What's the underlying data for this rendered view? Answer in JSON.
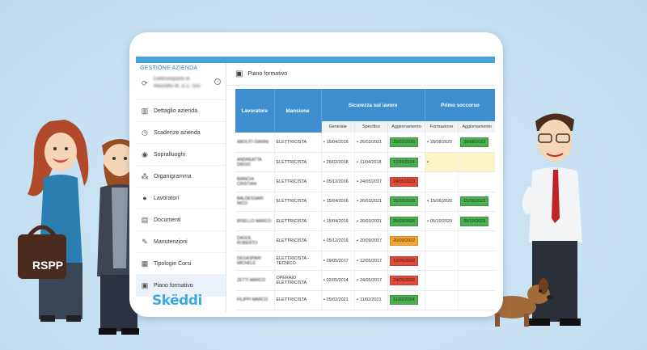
{
  "sidebar": {
    "section_title": "GESTIONE AZIENDA",
    "company_line1": "Elettroimpianti di",
    "company_line2": "Mascetto M. & C. Snc",
    "items": [
      {
        "label": "Dettaglio azienda",
        "icon": "building-icon"
      },
      {
        "label": "Scadenze azienda",
        "icon": "clock-icon"
      },
      {
        "label": "Sopralluoghi",
        "icon": "eye-icon"
      },
      {
        "label": "Organigramma",
        "icon": "org-chart-icon"
      },
      {
        "label": "Lavoratori",
        "icon": "person-icon"
      },
      {
        "label": "Documenti",
        "icon": "document-icon"
      },
      {
        "label": "Manutenzioni",
        "icon": "wrench-icon"
      },
      {
        "label": "Tipologie Corsi",
        "icon": "clipboard-icon"
      },
      {
        "label": "Piano formativo",
        "icon": "calendar-icon"
      }
    ],
    "brand": "Skëddi"
  },
  "main": {
    "title": "Piano formativo",
    "headers": {
      "lavoratore": "Lavoratore",
      "mansione": "Mansione",
      "sicurezza": "Sicurezza sul lavoro",
      "primo_soccorso": "Primo soccorso"
    },
    "subheaders": {
      "generale": "Generale",
      "specifico": "Specifico",
      "aggiornamento": "Aggiornamento",
      "formazione": "Formazione",
      "aggiornamento2": "Aggiornamento"
    },
    "rows": [
      {
        "name": "ABOLITI GIANNI",
        "role": "ELETTRICISTA",
        "generale": "15/04/2016",
        "specifico": "26/03/2021",
        "agg": "26/03/2026",
        "agg_color": "green",
        "form": "28/08/2020",
        "agg2": "28/08/2023",
        "agg2_color": "green"
      },
      {
        "name": "ANDREATTA DIEGO",
        "role": "ELETTRICISTA",
        "generale": "26/02/2018",
        "specifico": "11/04/2018",
        "agg": "11/04/2024",
        "agg_color": "green",
        "form": "",
        "agg2": "",
        "agg2_color": "yellow"
      },
      {
        "name": "BIANCHI CRISTIAN",
        "role": "ELETTRICISTA",
        "generale": "05/12/2016",
        "specifico": "24/05/2017",
        "agg": "24/05/2023",
        "agg_color": "red",
        "form": "",
        "agg2": "",
        "agg2_color": ""
      },
      {
        "name": "BALDESSARI NICO",
        "role": "ELETTRICISTA",
        "generale": "15/04/2016",
        "specifico": "26/03/2021",
        "agg": "26/03/2026",
        "agg_color": "green",
        "form": "15/06/2020",
        "agg2": "15/06/2023",
        "agg2_color": "green"
      },
      {
        "name": "BISELLO MARCO",
        "role": "ELETTRICISTA",
        "generale": "15/04/2016",
        "specifico": "26/03/2021",
        "agg": "26/03/2026",
        "agg_color": "green",
        "form": "05/10/2020",
        "agg2": "05/10/2023",
        "agg2_color": "green"
      },
      {
        "name": "DAGOL ROBERTO",
        "role": "ELETTRICISTA",
        "generale": "05/12/2016",
        "specifico": "20/09/2017",
        "agg": "20/09/2022",
        "agg_color": "orange",
        "form": "",
        "agg2": "",
        "agg2_color": ""
      },
      {
        "name": "DEGASPARI MICHELE",
        "role": "ELETTRICISTA - TECNICO",
        "generale": "09/05/2017",
        "specifico": "12/05/2017",
        "agg": "12/05/2022",
        "agg_color": "red",
        "form": "",
        "agg2": "",
        "agg2_color": ""
      },
      {
        "name": "ZETTI MARCO",
        "role": "OPERAIO ELETTRICISTA",
        "generale": "02/05/2014",
        "specifico": "24/05/2017",
        "agg": "24/05/2022",
        "agg_color": "red",
        "form": "",
        "agg2": "",
        "agg2_color": ""
      },
      {
        "name": "FILIPPI MARCO",
        "role": "ELETTRICISTA",
        "generale": "05/02/2021",
        "specifico": "11/02/2021",
        "agg": "11/02/2024",
        "agg_color": "green",
        "form": "",
        "agg2": "",
        "agg2_color": ""
      }
    ]
  },
  "illustration": {
    "bag_label": "RSPP"
  },
  "colors": {
    "header_blue": "#3f8fd0",
    "brand_blue": "#3aa8e6",
    "status_green": "#4caf50",
    "status_red": "#e04b3b",
    "status_orange": "#f2a533"
  }
}
